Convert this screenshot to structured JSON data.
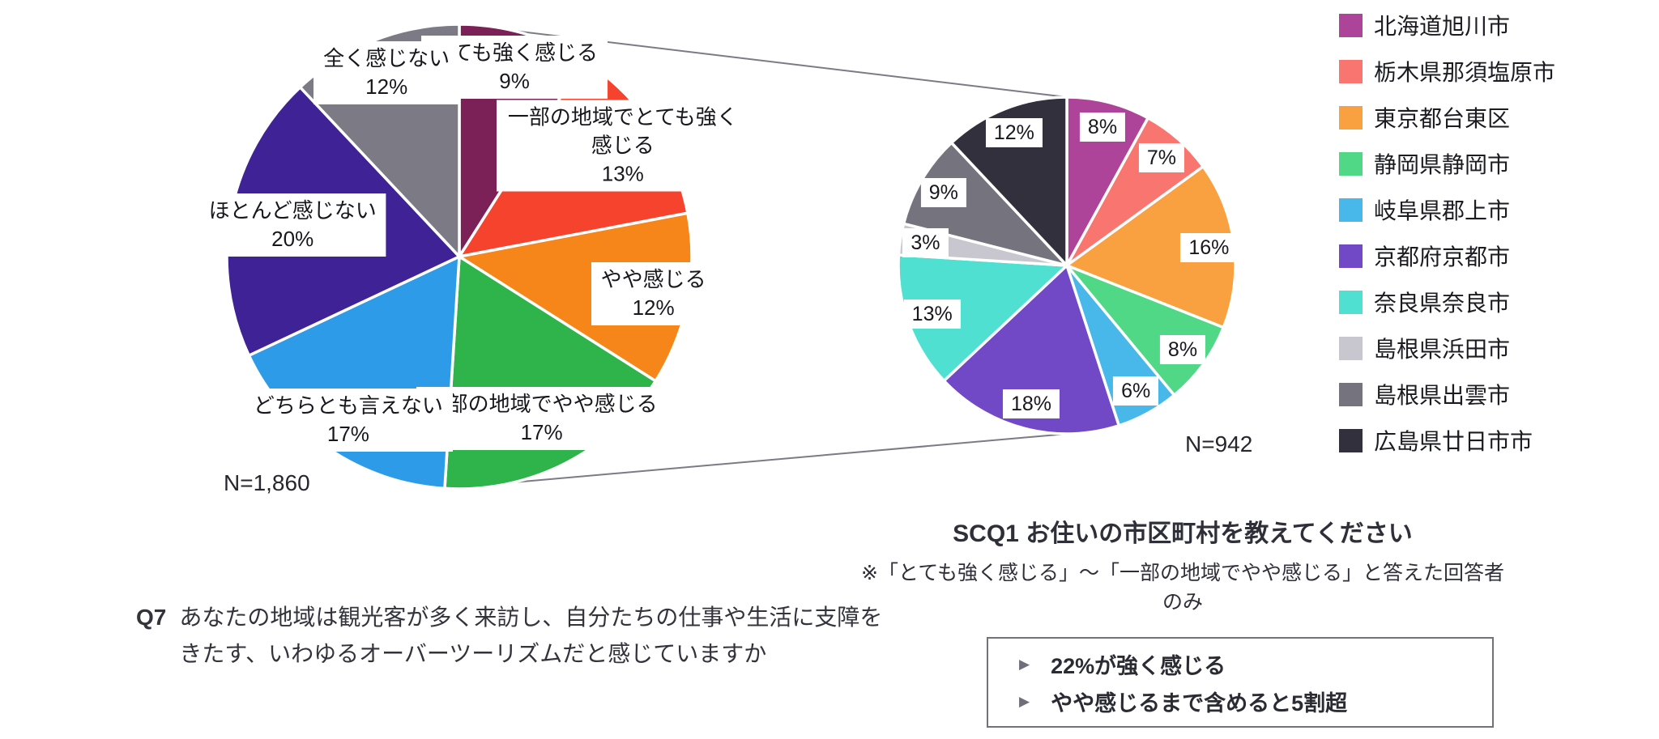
{
  "chart_data": [
    {
      "id": "q7-pie",
      "type": "pie",
      "n_label": "N=1,860",
      "start_angle_deg": 0,
      "direction": "clockwise",
      "label_style": "name-and-percent-white-boxes",
      "labels": [
        "とても強く感じる",
        "一部の地域でとても強く感じる",
        "やや感じる",
        "一部の地域でやや感じる",
        "どちらとも言えない",
        "ほとんど感じない",
        "全く感じない"
      ],
      "values": [
        9,
        13,
        12,
        17,
        17,
        20,
        12
      ],
      "value_labels": [
        "9%",
        "13%",
        "12%",
        "17%",
        "17%",
        "20%",
        "12%"
      ],
      "colors": [
        "#7C2058",
        "#F5432E",
        "#F6861A",
        "#2FB44C",
        "#2E9BE8",
        "#3F2396",
        "#7B7A85"
      ]
    },
    {
      "id": "scq1-pie",
      "type": "pie",
      "n_label": "N=942",
      "start_angle_deg": 0,
      "direction": "clockwise",
      "label_style": "percent-white-boxes",
      "legend_position": "right",
      "labels": [
        "北海道旭川市",
        "栃木県那須塩原市",
        "東京都台東区",
        "静岡県静岡市",
        "岐阜県郡上市",
        "京都府京都市",
        "奈良県奈良市",
        "島根県浜田市",
        "島根県出雲市",
        "広島県廿日市市"
      ],
      "values": [
        8,
        7,
        16,
        8,
        6,
        18,
        13,
        3,
        9,
        12
      ],
      "value_labels": [
        "8%",
        "7%",
        "16%",
        "8%",
        "6%",
        "18%",
        "13%",
        "3%",
        "9%",
        "12%"
      ],
      "colors": [
        "#AE449A",
        "#F97670",
        "#F9A140",
        "#50D887",
        "#48B7E9",
        "#7148C6",
        "#4FE0D1",
        "#C8C7D0",
        "#74737E",
        "#31303C"
      ]
    }
  ],
  "captions": {
    "q7_prefix": "Q7",
    "q7_line1": "あなたの地域は観光客が多く来訪し、自分たちの仕事や生活に支障を",
    "q7_line2": "きたす、いわゆるオーバーツーリズムだと感じていますか",
    "scq1_title": "SCQ1 お住いの市区町村を教えてください",
    "scq1_note": "※「とても強く感じる」～「一部の地域でやや感じる」と答えた回答者のみ"
  },
  "callout": {
    "bullet_glyph": "▶",
    "items": [
      "22%が強く感じる",
      "やや感じるまで含めると5割超"
    ]
  },
  "connector_color": "#7B7B84"
}
